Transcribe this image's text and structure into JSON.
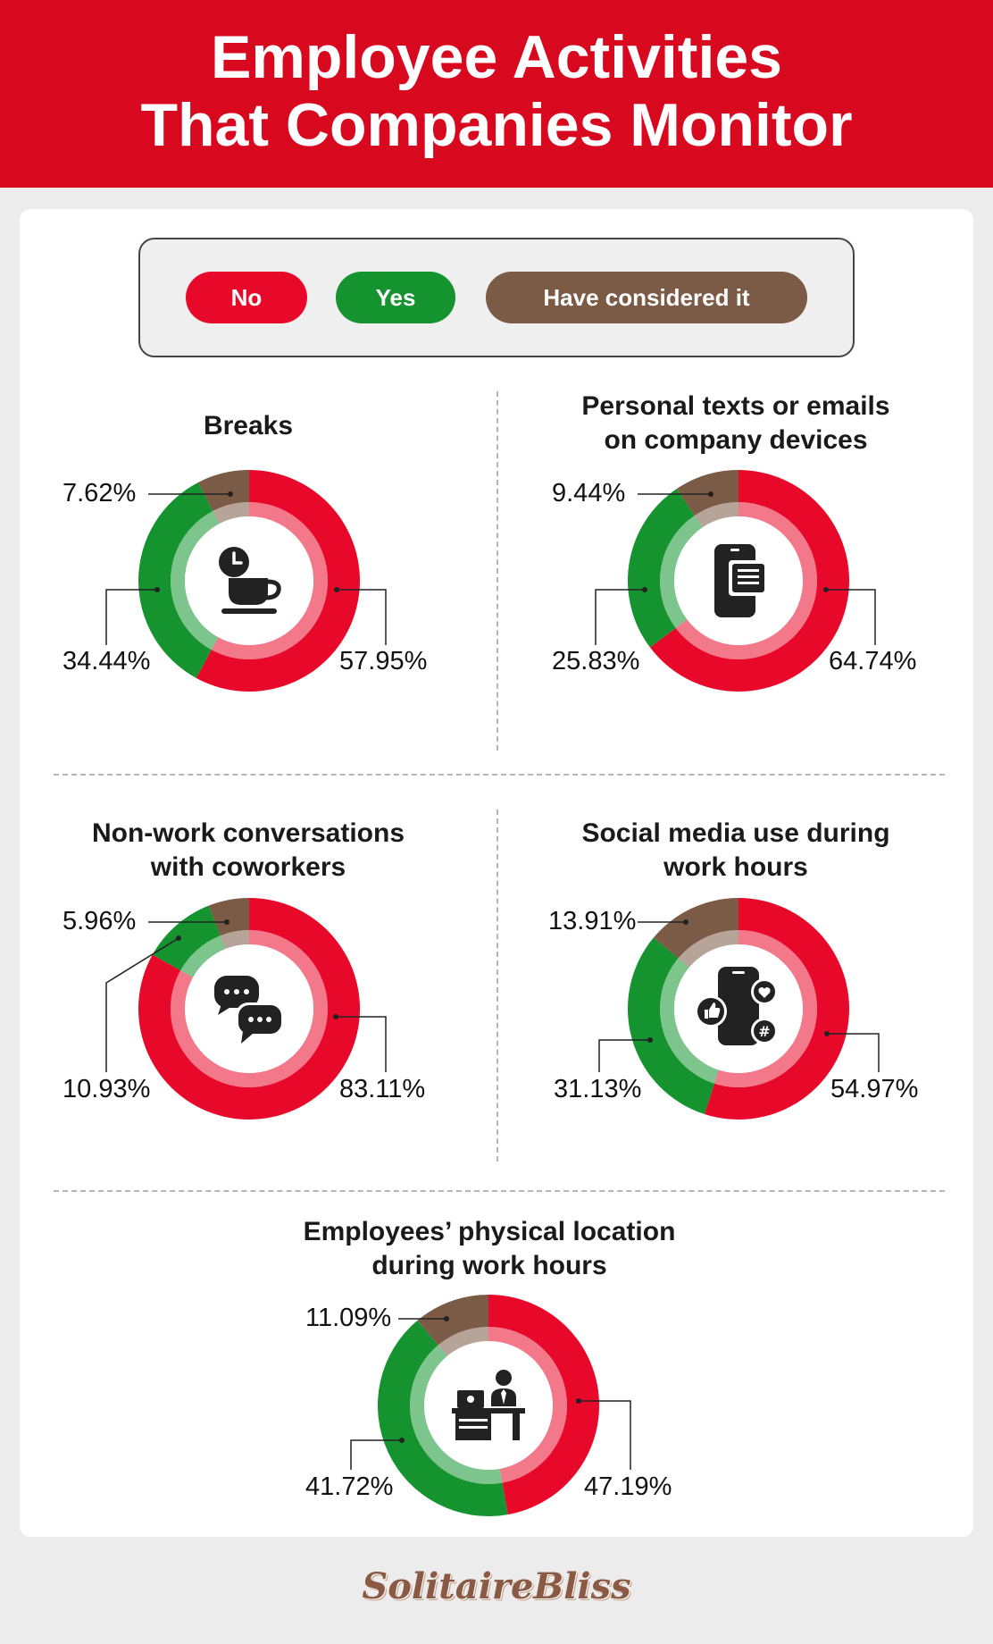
{
  "header": {
    "title_line1": "Employee Activities",
    "title_line2": "That Companies Monitor"
  },
  "legend": {
    "no_label": "No",
    "yes_label": "Yes",
    "considered_label": "Have considered it"
  },
  "colors": {
    "no": "#e8092a",
    "yes": "#14932f",
    "considered": "#7b5a46",
    "header": "#d8091f"
  },
  "chart_data": [
    {
      "type": "pie",
      "title": "Breaks",
      "series": [
        {
          "name": "No",
          "value": 57.95,
          "label": "57.95%"
        },
        {
          "name": "Yes",
          "value": 34.44,
          "label": "34.44%"
        },
        {
          "name": "Have considered it",
          "value": 7.62,
          "label": "7.62%"
        }
      ],
      "icon": "coffee-break-icon"
    },
    {
      "type": "pie",
      "title": "Personal texts or emails on company devices",
      "series": [
        {
          "name": "No",
          "value": 64.74,
          "label": "64.74%"
        },
        {
          "name": "Yes",
          "value": 25.83,
          "label": "25.83%"
        },
        {
          "name": "Have considered it",
          "value": 9.44,
          "label": "9.44%"
        }
      ],
      "icon": "phone-message-icon"
    },
    {
      "type": "pie",
      "title": "Non-work conversations with coworkers",
      "series": [
        {
          "name": "No",
          "value": 83.11,
          "label": "83.11%"
        },
        {
          "name": "Yes",
          "value": 10.93,
          "label": "10.93%"
        },
        {
          "name": "Have considered it",
          "value": 5.96,
          "label": "5.96%"
        }
      ],
      "icon": "chat-bubbles-icon"
    },
    {
      "type": "pie",
      "title": "Social media use during work hours",
      "series": [
        {
          "name": "No",
          "value": 54.97,
          "label": "54.97%"
        },
        {
          "name": "Yes",
          "value": 31.13,
          "label": "31.13%"
        },
        {
          "name": "Have considered it",
          "value": 13.91,
          "label": "13.91%"
        }
      ],
      "icon": "social-media-icon"
    },
    {
      "type": "pie",
      "title": "Employees’ physical location during work hours",
      "series": [
        {
          "name": "No",
          "value": 47.19,
          "label": "47.19%"
        },
        {
          "name": "Yes",
          "value": 41.72,
          "label": "41.72%"
        },
        {
          "name": "Have considered it",
          "value": 11.09,
          "label": "11.09%"
        }
      ],
      "icon": "office-desk-icon"
    }
  ],
  "panels": [
    {
      "title_line1": "Breaks",
      "title_line2": ""
    },
    {
      "title_line1": "Personal texts or emails",
      "title_line2": "on company devices"
    },
    {
      "title_line1": "Non-work conversations",
      "title_line2": "with coworkers"
    },
    {
      "title_line1": "Social media use during",
      "title_line2": "work hours"
    },
    {
      "title_line1": "Employees’ physical location",
      "title_line2": "during work hours"
    }
  ],
  "footer": {
    "brand": "SolitaireBliss"
  }
}
